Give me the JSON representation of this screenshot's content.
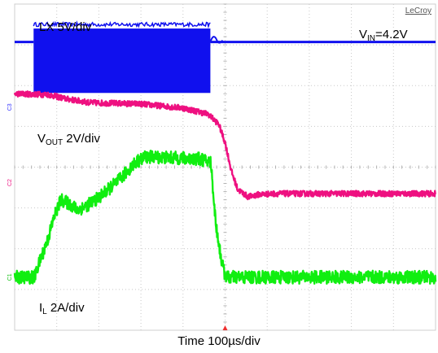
{
  "brand": "LeCroy",
  "annotations": {
    "lx": "LX  5V/div",
    "vin_main": "V",
    "vin_sub": "IN",
    "vin_value": "=4.2V",
    "vout_main": "V",
    "vout_sub": "OUT",
    "vout_scale": "  2V/div",
    "il_main": "I",
    "il_sub": "L",
    "il_scale": " 2A/div",
    "time": "Time  100µs/div"
  },
  "chart_data": {
    "type": "line",
    "title": "",
    "xlabel": "Time  100µs/div",
    "grid": true,
    "x_divisions": 10,
    "y_divisions": 8,
    "xlim": [
      0,
      10
    ],
    "ylim": [
      0,
      8
    ],
    "trigger_x_div": 5.0,
    "channel_marker_labels": [
      "C3",
      "C2",
      "C1"
    ],
    "series": [
      {
        "name": "LX  5V/div",
        "color": "#1010ee",
        "baseline_div": 7.07,
        "switching_band": {
          "x_start_div": 0.45,
          "x_end_div": 4.65,
          "low_div": 5.82,
          "high_div": 7.4
        }
      },
      {
        "name": "V_OUT  2V/div",
        "color": "#ee1080",
        "points_div": [
          [
            0.0,
            5.8
          ],
          [
            0.8,
            5.78
          ],
          [
            1.2,
            5.68
          ],
          [
            1.8,
            5.58
          ],
          [
            3.0,
            5.55
          ],
          [
            4.0,
            5.45
          ],
          [
            4.6,
            5.3
          ],
          [
            4.85,
            5.05
          ],
          [
            5.0,
            4.6
          ],
          [
            5.15,
            3.9
          ],
          [
            5.3,
            3.45
          ],
          [
            5.55,
            3.27
          ],
          [
            5.8,
            3.33
          ],
          [
            6.2,
            3.35
          ],
          [
            10.0,
            3.35
          ]
        ],
        "noise_div": 0.07
      },
      {
        "name": "I_L  2A/div",
        "color": "#10ee10",
        "points_div": [
          [
            0.0,
            1.3
          ],
          [
            0.47,
            1.3
          ],
          [
            0.6,
            1.7
          ],
          [
            0.78,
            2.2
          ],
          [
            0.95,
            2.82
          ],
          [
            1.1,
            3.2
          ],
          [
            1.3,
            3.1
          ],
          [
            1.5,
            2.95
          ],
          [
            1.7,
            3.05
          ],
          [
            2.0,
            3.25
          ],
          [
            2.5,
            3.7
          ],
          [
            2.85,
            4.1
          ],
          [
            3.1,
            4.25
          ],
          [
            3.3,
            4.25
          ],
          [
            4.4,
            4.2
          ],
          [
            4.66,
            4.12
          ],
          [
            4.78,
            2.6
          ],
          [
            4.9,
            1.8
          ],
          [
            4.98,
            1.4
          ],
          [
            5.05,
            1.3
          ],
          [
            10.0,
            1.3
          ]
        ],
        "noise_div": 0.16
      }
    ]
  }
}
